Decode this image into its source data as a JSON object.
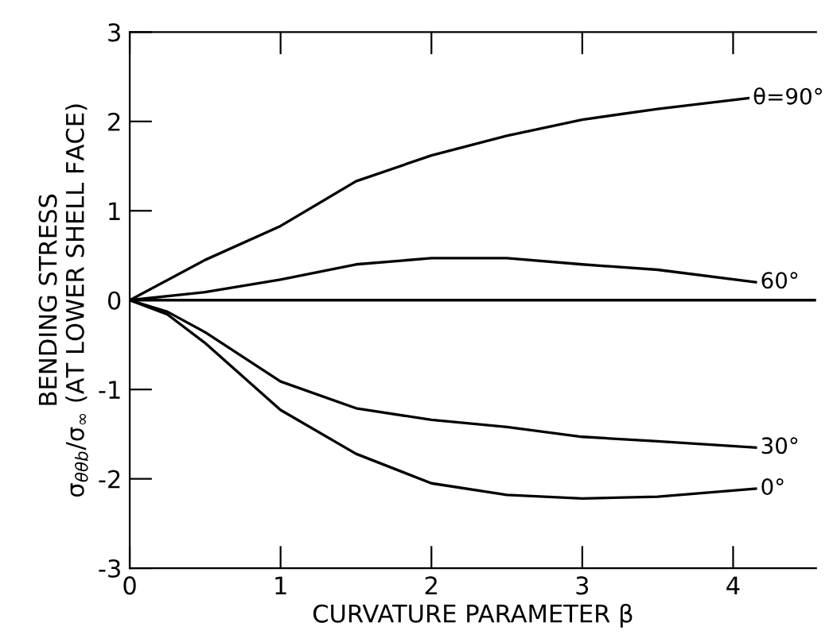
{
  "chart_data": {
    "type": "line",
    "xlabel": "CURVATURE PARAMETER β",
    "ylabel": "BENDING STRESS\nσ$_{θθb}$/σ$_{∞}$ (AT LOWER SHELL FACE)",
    "xlim": [
      0,
      4.55
    ],
    "ylim": [
      -3,
      3
    ],
    "xticks": [
      0,
      1,
      2,
      3,
      4
    ],
    "yticks": [
      -3,
      -2,
      -1,
      0,
      1,
      2,
      3
    ],
    "grid": false,
    "legend": false,
    "marker": "none",
    "line_style": "solid",
    "ref_lines": [
      {
        "axis": "y",
        "value": 0,
        "label": null,
        "color": "#000000"
      }
    ],
    "series": [
      {
        "name": "θ=90°",
        "color": "#000000",
        "x": [
          0,
          0.5,
          1.0,
          1.5,
          2.0,
          2.5,
          3.0,
          3.5,
          4.1
        ],
        "values": [
          0,
          0.45,
          0.83,
          1.33,
          1.62,
          1.84,
          2.02,
          2.14,
          2.26
        ]
      },
      {
        "name": "60°",
        "color": "#000000",
        "x": [
          0,
          0.5,
          1.0,
          1.5,
          2.0,
          2.5,
          3.0,
          3.5,
          4.15
        ],
        "values": [
          0,
          0.09,
          0.23,
          0.4,
          0.47,
          0.47,
          0.4,
          0.34,
          0.2
        ]
      },
      {
        "name": "30°",
        "color": "#000000",
        "x": [
          0,
          0.25,
          0.5,
          1.0,
          1.5,
          2.0,
          2.5,
          3.0,
          3.5,
          4.15
        ],
        "values": [
          0,
          -0.13,
          -0.36,
          -0.91,
          -1.21,
          -1.34,
          -1.42,
          -1.53,
          -1.58,
          -1.65
        ]
      },
      {
        "name": "0°",
        "color": "#000000",
        "x": [
          0,
          0.25,
          0.5,
          1.0,
          1.5,
          2.0,
          2.5,
          3.0,
          3.5,
          4.15
        ],
        "values": [
          0,
          -0.16,
          -0.48,
          -1.23,
          -1.72,
          -2.05,
          -2.18,
          -2.22,
          -2.2,
          -2.11
        ]
      }
    ]
  }
}
